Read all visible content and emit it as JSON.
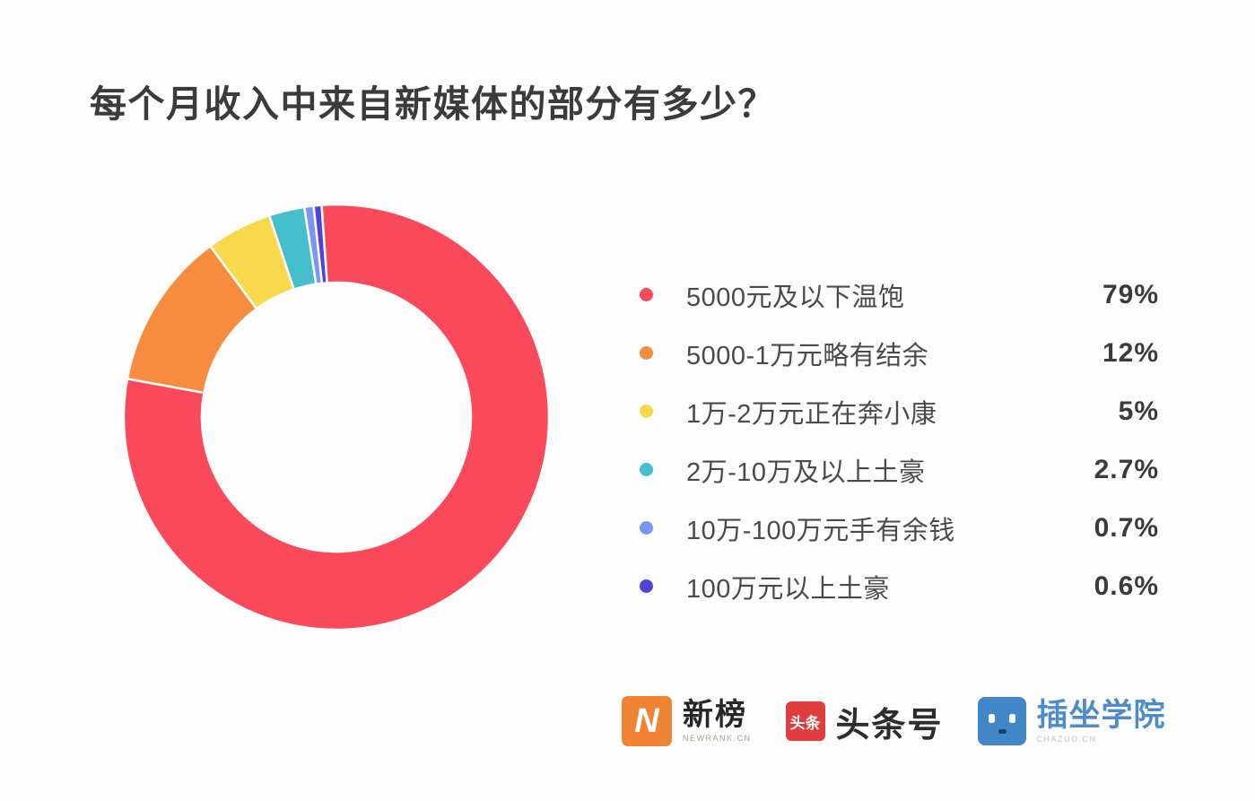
{
  "page": {
    "title": "每个月收入中来自新媒体的部分有多少？"
  },
  "chart_data": {
    "type": "pie",
    "subtype": "donut",
    "title": "每个月收入中来自新媒体的部分有多少？",
    "legend_position": "right",
    "start_angle_deg": -4,
    "inner_radius_ratio": 0.635,
    "slices": [
      {
        "label": "5000元及以下温饱",
        "value": 79,
        "pct_label": "79%",
        "color": "#f9495b"
      },
      {
        "label": "5000-1万元略有结余",
        "value": 12,
        "pct_label": "12%",
        "color": "#f78c3e"
      },
      {
        "label": "1万-2万元正在奔小康",
        "value": 5,
        "pct_label": "5%",
        "color": "#f8d94b"
      },
      {
        "label": "2万-10万及以上土豪",
        "value": 2.7,
        "pct_label": "2.7%",
        "color": "#45bfcb"
      },
      {
        "label": "10万-100万元手有余钱",
        "value": 0.7,
        "pct_label": "0.7%",
        "color": "#7b96f2"
      },
      {
        "label": "100万元以上土豪",
        "value": 0.6,
        "pct_label": "0.6%",
        "color": "#5243d8"
      }
    ]
  },
  "footer": {
    "logos": [
      {
        "name": "新榜",
        "subtext": "NEWRANK.CN",
        "icon_glyph": "N",
        "icon_color": "#f08434"
      },
      {
        "name": "头条号",
        "icon_glyph": "头条",
        "icon_color": "#e03b3d"
      },
      {
        "name": "插坐学院",
        "subtext": "CHAZUO.CN",
        "icon_color": "#4187c7",
        "text_color": "#4e8bc9"
      }
    ]
  }
}
